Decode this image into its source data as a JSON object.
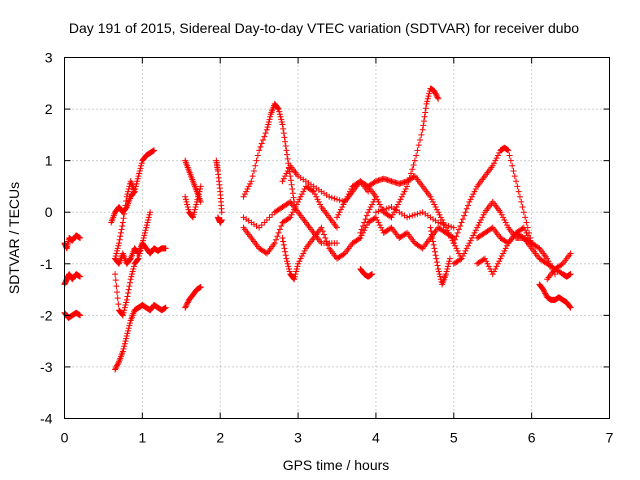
{
  "chart_data": {
    "type": "scatter",
    "title": "Day 191 of 2015, Sidereal Day-to-day VTEC variation (SDTVAR) for receiver dubo",
    "xlabel": "GPS time / hours",
    "ylabel": "SDTVAR / TECUs",
    "xlim": [
      0,
      7
    ],
    "ylim": [
      -4,
      3
    ],
    "xticks": [
      "0",
      "1",
      "2",
      "3",
      "4",
      "5",
      "6",
      "7"
    ],
    "yticks": [
      "-4",
      "-3",
      "-2",
      "-1",
      "0",
      "1",
      "2",
      "3"
    ],
    "grid": true,
    "marker": "+",
    "color": "#ff0000",
    "series": [
      {
        "name": "s1",
        "x": [
          0.0,
          0.03,
          0.06,
          0.1,
          0.15,
          0.2
        ],
        "y": [
          -0.6,
          -0.7,
          -0.5,
          -0.55,
          -0.45,
          -0.5
        ]
      },
      {
        "name": "s2",
        "x": [
          0.0,
          0.03,
          0.06,
          0.1,
          0.15,
          0.2
        ],
        "y": [
          -1.4,
          -1.3,
          -1.2,
          -1.3,
          -1.2,
          -1.25
        ]
      },
      {
        "name": "s3",
        "x": [
          0.0,
          0.05,
          0.1,
          0.15,
          0.2
        ],
        "y": [
          -1.95,
          -2.05,
          -2.0,
          -1.95,
          -2.0
        ]
      },
      {
        "name": "s4",
        "x": [
          0.65,
          0.7,
          0.75,
          0.8,
          0.85,
          0.9,
          0.95,
          1.0,
          1.05,
          1.1,
          1.15,
          1.2,
          1.25,
          1.3
        ],
        "y": [
          -3.05,
          -2.9,
          -2.7,
          -2.4,
          -2.1,
          -1.9,
          -1.85,
          -1.8,
          -1.85,
          -1.9,
          -1.8,
          -1.85,
          -1.9,
          -1.85
        ]
      },
      {
        "name": "s5",
        "x": [
          0.65,
          0.7,
          0.75,
          0.8,
          0.85,
          0.9,
          0.95,
          1.0,
          1.05,
          1.1,
          1.15
        ],
        "y": [
          -0.9,
          -0.6,
          -0.2,
          0.3,
          0.6,
          0.4,
          0.7,
          1.0,
          1.1,
          1.15,
          1.2
        ]
      },
      {
        "name": "s6",
        "x": [
          0.65,
          0.7,
          0.75,
          0.8,
          0.85,
          0.9,
          0.95,
          1.0,
          1.05,
          1.1,
          1.15,
          1.2,
          1.25,
          1.3
        ],
        "y": [
          -0.9,
          -1.0,
          -0.8,
          -1.0,
          -0.9,
          -0.7,
          -0.8,
          -0.6,
          -0.7,
          -0.8,
          -0.7,
          -0.75,
          -0.7,
          -0.7
        ]
      },
      {
        "name": "s7",
        "x": [
          0.65,
          0.7,
          0.75,
          0.8,
          0.85,
          0.9,
          0.95,
          1.0,
          1.05,
          1.1
        ],
        "y": [
          -1.2,
          -1.9,
          -2.0,
          -1.7,
          -1.3,
          -1.0,
          -0.9,
          -0.6,
          -0.3,
          0.0
        ]
      },
      {
        "name": "s8",
        "x": [
          0.6,
          0.65,
          0.7,
          0.75,
          0.8,
          0.85,
          0.9
        ],
        "y": [
          -0.2,
          0.0,
          0.1,
          0.0,
          0.1,
          0.3,
          0.4
        ]
      },
      {
        "name": "s9",
        "x": [
          1.55,
          1.6,
          1.65,
          1.7,
          1.75
        ],
        "y": [
          -1.85,
          -1.7,
          -1.6,
          -1.5,
          -1.45
        ]
      },
      {
        "name": "s10",
        "x": [
          1.55,
          1.6,
          1.65,
          1.7,
          1.75
        ],
        "y": [
          1.0,
          0.8,
          0.6,
          0.4,
          0.2
        ]
      },
      {
        "name": "s11",
        "x": [
          1.55,
          1.6,
          1.65,
          1.7,
          1.75
        ],
        "y": [
          0.3,
          0.0,
          -0.1,
          0.2,
          0.5
        ]
      },
      {
        "name": "s12",
        "x": [
          1.95,
          1.97,
          2.0,
          2.02
        ],
        "y": [
          1.0,
          0.8,
          0.4,
          0.0
        ]
      },
      {
        "name": "s13",
        "x": [
          1.97,
          2.0,
          2.02
        ],
        "y": [
          -0.1,
          -0.2,
          -0.15
        ]
      },
      {
        "name": "s14",
        "x": [
          2.3,
          2.4,
          2.5,
          2.6,
          2.65,
          2.7,
          2.75,
          2.8,
          2.85,
          2.9,
          2.95
        ],
        "y": [
          0.3,
          0.6,
          1.2,
          1.6,
          1.9,
          2.1,
          2.0,
          1.7,
          1.2,
          0.7,
          0.2
        ]
      },
      {
        "name": "s15",
        "x": [
          2.3,
          2.4,
          2.5,
          2.6,
          2.7,
          2.8,
          2.9,
          3.0,
          3.1,
          3.2,
          3.3,
          3.4,
          3.5
        ],
        "y": [
          -0.3,
          -0.5,
          -0.7,
          -0.8,
          -0.6,
          -0.2,
          -0.1,
          0.2,
          0.5,
          0.4,
          0.1,
          -0.1,
          -0.3
        ]
      },
      {
        "name": "s16",
        "x": [
          2.3,
          2.5,
          2.7,
          2.8,
          2.9,
          3.0,
          3.1,
          3.2,
          3.3,
          3.5
        ],
        "y": [
          -0.1,
          -0.3,
          0.0,
          0.1,
          0.2,
          0.0,
          -0.2,
          -0.4,
          -0.6,
          -0.6
        ]
      },
      {
        "name": "s17",
        "x": [
          2.8,
          2.85,
          2.9,
          2.95,
          3.0,
          3.1,
          3.2,
          3.3,
          3.4,
          3.5,
          3.6,
          3.7,
          3.8,
          3.9
        ],
        "y": [
          -0.5,
          -0.9,
          -1.2,
          -1.3,
          -1.0,
          -0.7,
          -0.5,
          -0.3,
          -0.7,
          -0.9,
          -0.8,
          -0.6,
          -0.5,
          -0.2
        ]
      },
      {
        "name": "s18",
        "x": [
          2.8,
          2.9,
          3.0,
          3.2,
          3.4,
          3.6,
          3.7,
          3.8,
          3.9,
          4.0
        ],
        "y": [
          0.6,
          0.9,
          0.7,
          0.5,
          0.3,
          0.2,
          0.4,
          0.6,
          0.5,
          0.3
        ]
      },
      {
        "name": "s19",
        "x": [
          3.5,
          3.6,
          3.7,
          3.8,
          3.9
        ],
        "y": [
          -0.1,
          0.2,
          0.5,
          0.6,
          0.4
        ]
      },
      {
        "name": "s20",
        "x": [
          3.8,
          3.85,
          3.9,
          3.95
        ],
        "y": [
          -1.1,
          -1.2,
          -1.25,
          -1.2
        ]
      },
      {
        "name": "s21",
        "x": [
          3.8,
          3.9,
          4.0,
          4.1,
          4.2,
          4.3,
          4.4,
          4.5,
          4.6,
          4.65,
          4.7,
          4.75,
          4.8
        ],
        "y": [
          -0.4,
          0.0,
          0.3,
          0.0,
          -0.1,
          0.2,
          0.5,
          1.0,
          1.6,
          2.1,
          2.4,
          2.35,
          2.2
        ]
      },
      {
        "name": "s22",
        "x": [
          3.9,
          4.0,
          4.1,
          4.2,
          4.3,
          4.4,
          4.5,
          4.6,
          4.7,
          4.8,
          4.9,
          5.0,
          5.1
        ],
        "y": [
          0.5,
          0.6,
          0.65,
          0.6,
          0.55,
          0.6,
          0.7,
          0.5,
          0.3,
          0.0,
          -0.3,
          -0.6,
          -0.9
        ]
      },
      {
        "name": "s23",
        "x": [
          3.9,
          4.0,
          4.1,
          4.2,
          4.3,
          4.4,
          4.5,
          4.6,
          4.7,
          4.8,
          4.9,
          5.0
        ],
        "y": [
          -0.2,
          -0.1,
          -0.4,
          -0.3,
          -0.5,
          -0.4,
          -0.6,
          -0.7,
          -0.5,
          -0.3,
          -0.4,
          -0.5
        ]
      },
      {
        "name": "s24",
        "x": [
          4.0,
          4.2,
          4.4,
          4.6,
          4.8,
          5.0
        ],
        "y": [
          0.0,
          0.1,
          -0.1,
          0.0,
          -0.2,
          -0.3
        ]
      },
      {
        "name": "s25",
        "x": [
          4.7,
          4.75,
          4.8,
          4.85,
          4.9,
          4.95
        ],
        "y": [
          -0.3,
          -0.7,
          -1.1,
          -1.4,
          -1.2,
          -0.9
        ]
      },
      {
        "name": "s26",
        "x": [
          5.0,
          5.1,
          5.2,
          5.3,
          5.4,
          5.5,
          5.6,
          5.65,
          5.7,
          5.8,
          5.9,
          6.0
        ],
        "y": [
          -0.6,
          -0.2,
          0.2,
          0.5,
          0.7,
          0.9,
          1.2,
          1.25,
          1.2,
          0.6,
          0.0,
          -0.6
        ]
      },
      {
        "name": "s27",
        "x": [
          5.0,
          5.1,
          5.2,
          5.3,
          5.4,
          5.5,
          5.6,
          5.7,
          5.8,
          5.9,
          6.0
        ],
        "y": [
          -1.0,
          -0.9,
          -0.6,
          -0.3,
          0.0,
          0.2,
          0.0,
          -0.3,
          -0.5,
          -0.5,
          -0.6
        ]
      },
      {
        "name": "s28",
        "x": [
          5.3,
          5.4,
          5.5,
          5.6,
          5.7,
          5.8,
          5.9,
          6.0,
          6.1,
          6.2,
          6.3,
          6.4,
          6.5
        ],
        "y": [
          -1.0,
          -0.9,
          -1.2,
          -0.9,
          -0.6,
          -0.4,
          -0.5,
          -0.7,
          -0.9,
          -1.0,
          -1.1,
          -1.0,
          -0.8
        ]
      },
      {
        "name": "s29",
        "x": [
          5.3,
          5.4,
          5.5,
          5.6,
          5.7,
          5.8,
          5.9,
          6.0,
          6.1,
          6.2,
          6.3
        ],
        "y": [
          -0.5,
          -0.4,
          -0.3,
          -0.5,
          -0.6,
          -0.4,
          -0.3,
          -0.6,
          -0.7,
          -0.9,
          -1.2
        ]
      },
      {
        "name": "s30",
        "x": [
          6.1,
          6.15,
          6.2,
          6.25,
          6.3,
          6.35,
          6.4,
          6.45,
          6.5
        ],
        "y": [
          -1.4,
          -1.5,
          -1.65,
          -1.7,
          -1.7,
          -1.65,
          -1.7,
          -1.75,
          -1.85
        ]
      },
      {
        "name": "s31",
        "x": [
          6.2,
          6.3,
          6.4,
          6.45,
          6.5
        ],
        "y": [
          -1.3,
          -1.1,
          -1.2,
          -1.25,
          -1.2
        ]
      }
    ]
  }
}
